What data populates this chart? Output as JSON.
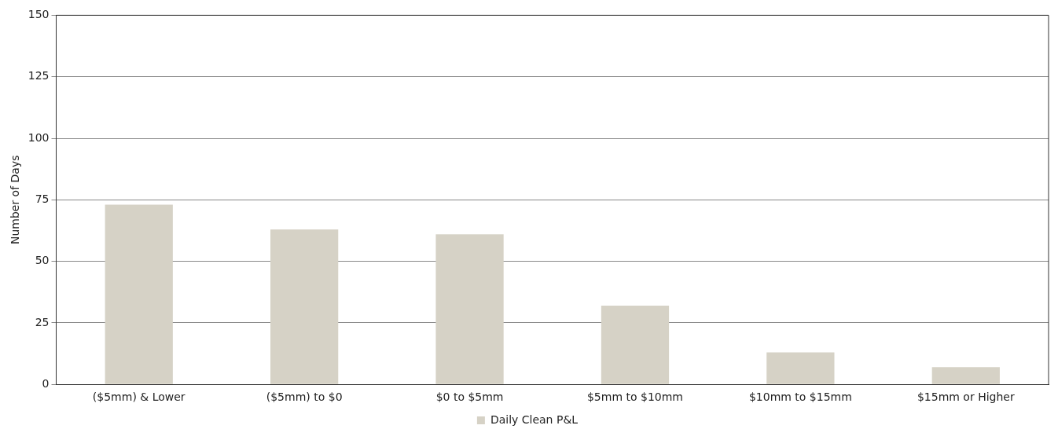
{
  "chart_data": {
    "type": "bar",
    "ylabel": "Number of Days",
    "categories": [
      "($5mm) & Lower",
      "($5mm) to $0",
      "$0 to $5mm",
      "$5mm to $10mm",
      "$10mm to $15mm",
      "$15mm or Higher"
    ],
    "series": [
      {
        "name": "Daily Clean P&L",
        "color": "#d6d2c6",
        "values": [
          73,
          63,
          61,
          32,
          13,
          7
        ]
      }
    ],
    "ylim": [
      0,
      150
    ],
    "yticks": [
      0,
      25,
      50,
      75,
      100,
      125,
      150
    ],
    "grid": "y",
    "legend": "bottom"
  }
}
